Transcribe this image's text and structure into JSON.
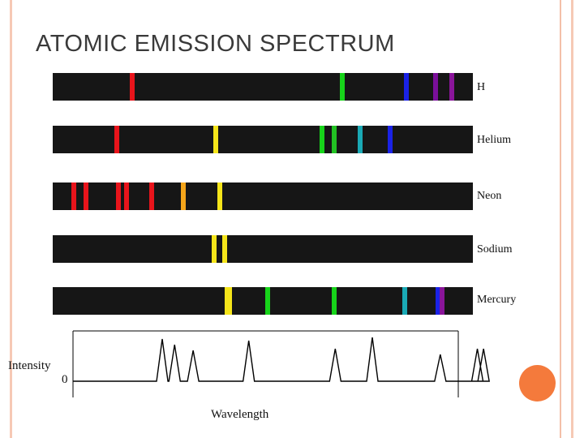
{
  "title": "ATOMIC EMISSION SPECTRUM",
  "spectra": [
    {
      "element": "H",
      "lines": [
        {
          "wavelength": 656,
          "color": "#e8141b"
        },
        {
          "wavelength": 486,
          "color": "#17d41a"
        },
        {
          "wavelength": 434,
          "color": "#1a22e6"
        },
        {
          "wavelength": 410,
          "color": "#7a0f9a"
        },
        {
          "wavelength": 397,
          "color": "#8a159a"
        }
      ]
    },
    {
      "element": "Helium",
      "lines": [
        {
          "wavelength": 668,
          "color": "#e8141b"
        },
        {
          "wavelength": 588,
          "color": "#f5e51a"
        },
        {
          "wavelength": 502,
          "color": "#17d41a"
        },
        {
          "wavelength": 492,
          "color": "#22c223"
        },
        {
          "wavelength": 471,
          "color": "#1aa9b5"
        },
        {
          "wavelength": 447,
          "color": "#1a22e6"
        }
      ]
    },
    {
      "element": "Neon",
      "lines": [
        {
          "wavelength": 703,
          "color": "#e8141b"
        },
        {
          "wavelength": 693,
          "color": "#e8141b"
        },
        {
          "wavelength": 667,
          "color": "#e8141b"
        },
        {
          "wavelength": 660,
          "color": "#e8141b"
        },
        {
          "wavelength": 640,
          "color": "#e8141b"
        },
        {
          "wavelength": 614,
          "color": "#f5a51a"
        },
        {
          "wavelength": 585,
          "color": "#f5e51a"
        }
      ]
    },
    {
      "element": "Sodium",
      "lines": [
        {
          "wavelength": 589.6,
          "color": "#f5e51a"
        },
        {
          "wavelength": 581,
          "color": "#f5e51a"
        }
      ]
    },
    {
      "element": "Mercury",
      "lines": [
        {
          "wavelength": 579,
          "color": "#f5e51a"
        },
        {
          "wavelength": 577,
          "color": "#f5e51a"
        },
        {
          "wavelength": 546,
          "color": "#17d41a"
        },
        {
          "wavelength": 492,
          "color": "#17d41a"
        },
        {
          "wavelength": 435,
          "color": "#1aa9b5"
        },
        {
          "wavelength": 408,
          "color": "#1a22e6"
        },
        {
          "wavelength": 405,
          "color": "#8a159a"
        }
      ]
    }
  ],
  "graph": {
    "ylabel": "Intensity",
    "zero_label": "0",
    "xlabel": "Wavelength",
    "peak_wavelengths": [
      655,
      645,
      630,
      585,
      515,
      485,
      430,
      400,
      395
    ]
  }
}
